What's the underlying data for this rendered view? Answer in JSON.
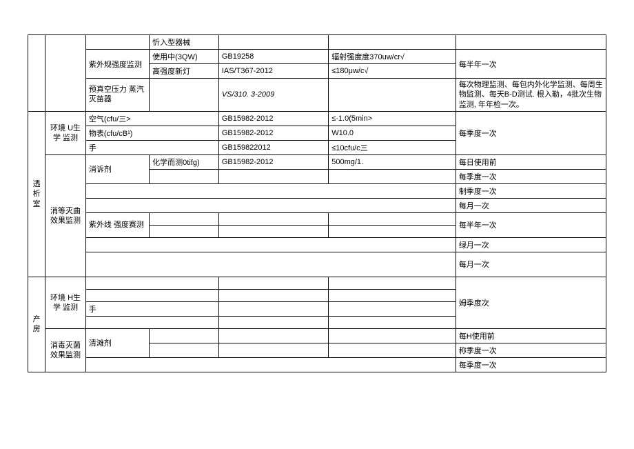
{
  "rows": {
    "r1_c4": "忻入型器械",
    "r2_c3": "紫外规强度监测",
    "r2_c4": "使用中(3QW)",
    "r2_c5": "GB19258",
    "r2_c6": "辐射强度度370uw/cr√",
    "r2_c7": "每半年一次",
    "r3_c4": "高强度新灯",
    "r3_c5": "IAS/T367-2012",
    "r3_c6": "≤180μw/c√",
    "r4_c3": "预真空压力\n蒸汽灭苗器",
    "r4_c5": "VS/310. 3-2009",
    "r4_c7": "每次物理监测、每包内外化学监测、每周生物监测、每天B-D测试. 根入勒，4批次生物监测, 年年检一次。",
    "r5_c1": "透析室",
    "r5_c2": "环境\nU生学\n监测",
    "r5_c3": "空气(cfu/三>",
    "r5_c5": "GB15982-2012",
    "r5_c6": "≤·1.0(5min>",
    "r5_c7": "每季度一次",
    "r6_c3": "物表(cfu/cB¹)",
    "r6_c5": "GB15982-2012",
    "r6_c6": "W10.0",
    "r7_c3": "手",
    "r7_c5": "GB159822012",
    "r7_c6": "≤10cfu/c三",
    "r8_c2": "消等灭曲\n效果监测",
    "r8_c3": "消诉剂",
    "r8_c4": "化学而测0tifg)",
    "r8_c5": "GB15982-2012",
    "r8_c6": "500mg/1.",
    "r8_c7": "每日使用前",
    "r9_c7": "每季度一次",
    "r10_c7": "制季度一次",
    "r11_c7": "每月一次",
    "r12_c3": "紫外线\n强度赛测",
    "r12_c7": "每半年一次",
    "r14_c7": "绿月一次",
    "r15_c7": "每月一次",
    "r16_c1": "产房",
    "r16_c2": "环境\nH生学\n监测",
    "r16_c7": "姆季度次",
    "r18_c3": "手",
    "r20_c2": "消毒灭菌\n效果监测",
    "r20_c3": "清滩剂",
    "r20_c7": "每H使用前",
    "r21_c7": "称季度一次",
    "r22_c7": "每季度一次"
  }
}
